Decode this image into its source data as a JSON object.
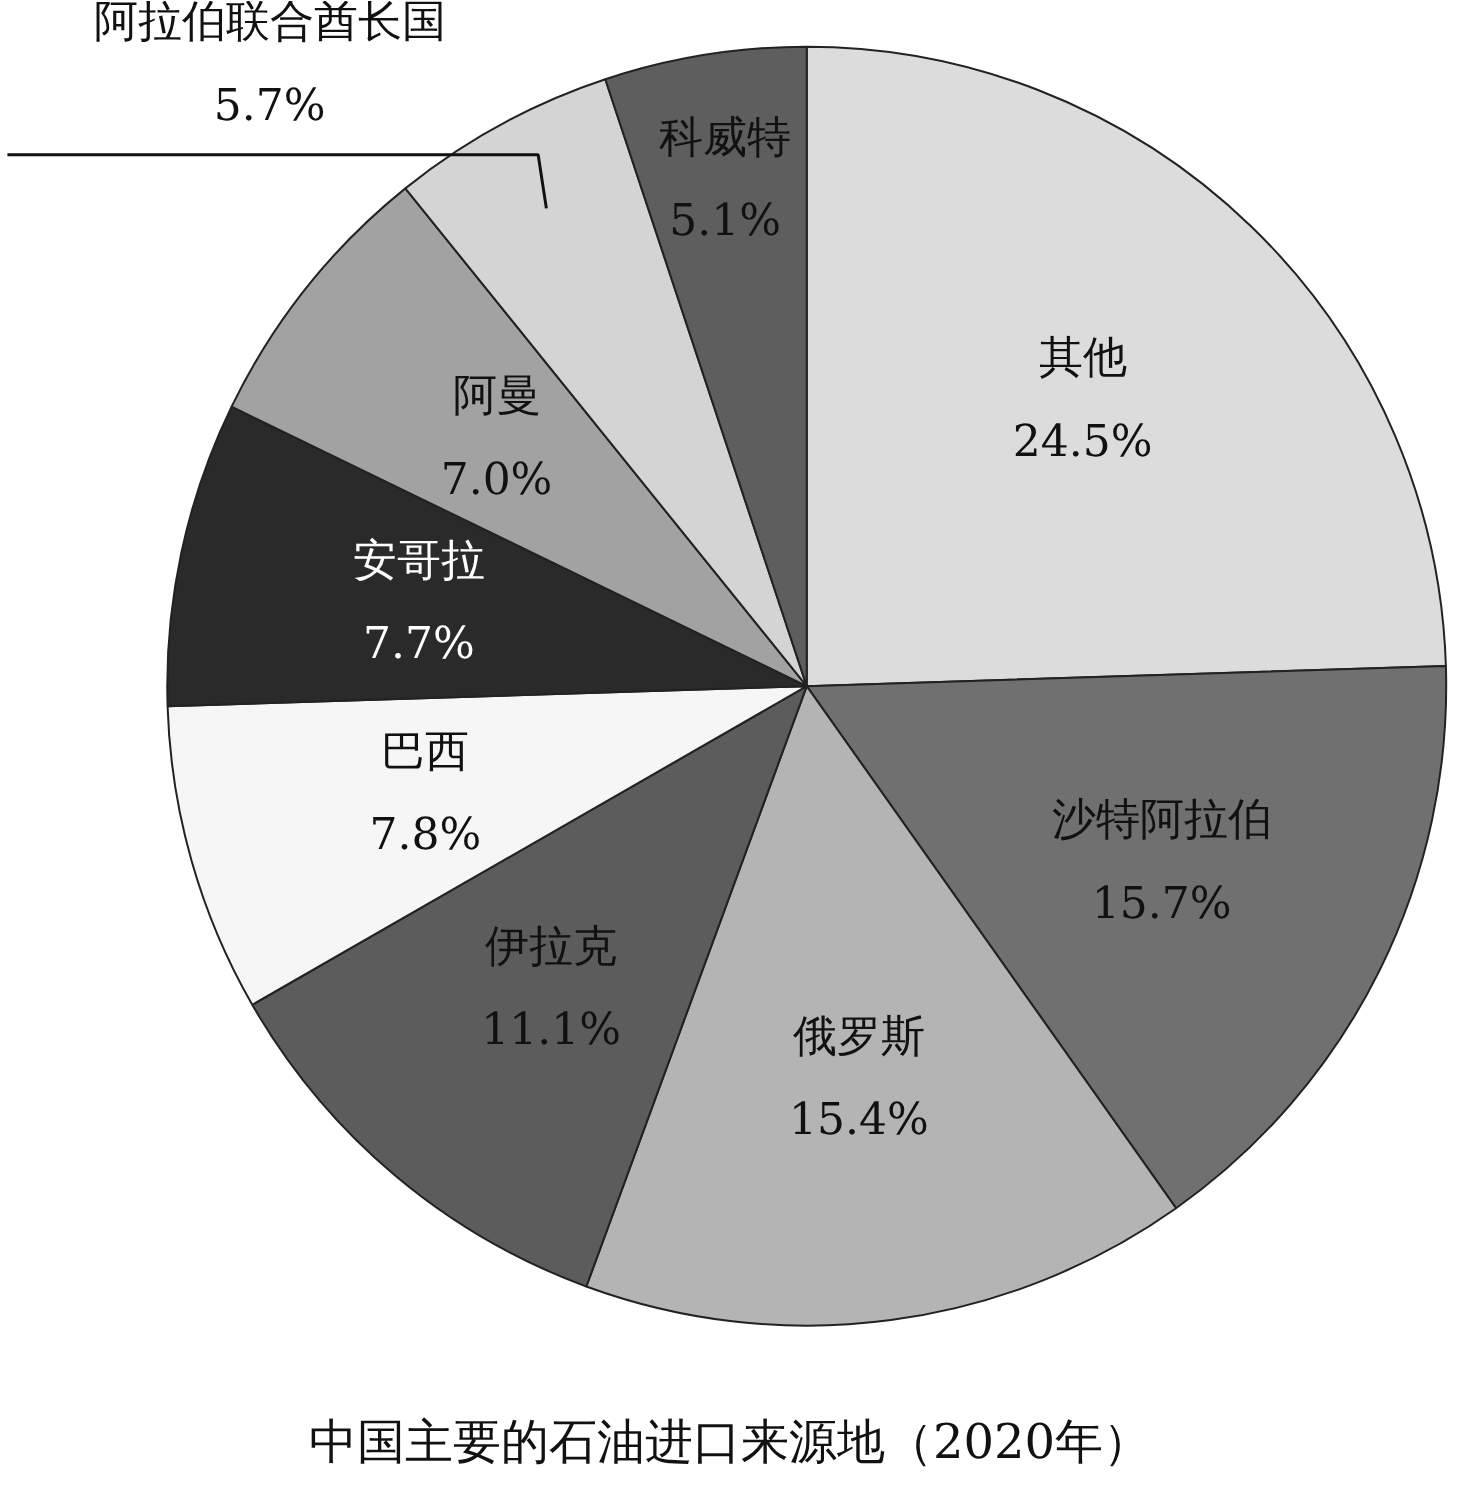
{
  "chart_data": {
    "type": "pie",
    "title": "中国主要的石油进口来源地（2020年）",
    "categories": [
      "其他",
      "沙特阿拉伯",
      "俄罗斯",
      "伊拉克",
      "巴西",
      "安哥拉",
      "阿曼",
      "阿拉伯联合酋长国",
      "科威特"
    ],
    "values": [
      24.5,
      15.7,
      15.4,
      11.1,
      7.8,
      7.7,
      7.0,
      5.7,
      5.1
    ],
    "value_labels": [
      "24.5%",
      "15.7%",
      "15.4%",
      "11.1%",
      "7.8%",
      "7.7%",
      "7.0%",
      "5.7%",
      "5.1%"
    ],
    "colors": [
      "#dcdcdc",
      "#707070",
      "#b4b4b4",
      "#5c5c5c",
      "#f6f6f6",
      "#2a2a2a",
      "#a2a2a2",
      "#d4d4d4",
      "#5e5e5e"
    ]
  }
}
